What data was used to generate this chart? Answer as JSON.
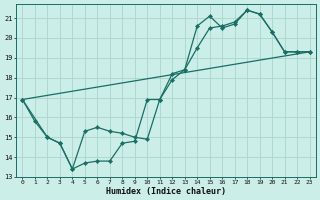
{
  "xlabel": "Humidex (Indice chaleur)",
  "background_color": "#cceee8",
  "grid_color": "#aad4cc",
  "line_color": "#1a6e64",
  "xlim": [
    -0.5,
    23.5
  ],
  "ylim": [
    13,
    21.7
  ],
  "yticks": [
    13,
    14,
    15,
    16,
    17,
    18,
    19,
    20,
    21
  ],
  "xticks": [
    0,
    1,
    2,
    3,
    4,
    5,
    6,
    7,
    8,
    9,
    10,
    11,
    12,
    13,
    14,
    15,
    16,
    17,
    18,
    19,
    20,
    21,
    22,
    23
  ],
  "line1_x": [
    0,
    1,
    2,
    3,
    4,
    5,
    6,
    7,
    8,
    9,
    10,
    11,
    12,
    13,
    14,
    15,
    16,
    17,
    18,
    19,
    20,
    21,
    22,
    23
  ],
  "line1_y": [
    16.9,
    15.8,
    15.0,
    14.7,
    13.4,
    13.7,
    13.8,
    13.8,
    14.7,
    14.8,
    16.9,
    16.9,
    17.9,
    18.4,
    20.6,
    21.1,
    20.5,
    20.7,
    21.4,
    21.2,
    20.3,
    19.3,
    19.3,
    19.3
  ],
  "line2_x": [
    0,
    2,
    3,
    4,
    5,
    6,
    7,
    8,
    9,
    10,
    11,
    12,
    13,
    14,
    15,
    16,
    17,
    18,
    19,
    20,
    21,
    22,
    23
  ],
  "line2_y": [
    16.9,
    15.0,
    14.7,
    13.4,
    15.3,
    15.5,
    15.3,
    15.2,
    15.0,
    14.9,
    16.9,
    18.2,
    18.4,
    19.5,
    20.5,
    20.6,
    20.8,
    21.4,
    21.2,
    20.3,
    19.3,
    19.3,
    19.3
  ],
  "line3_x": [
    0,
    23
  ],
  "line3_y": [
    16.9,
    19.3
  ]
}
